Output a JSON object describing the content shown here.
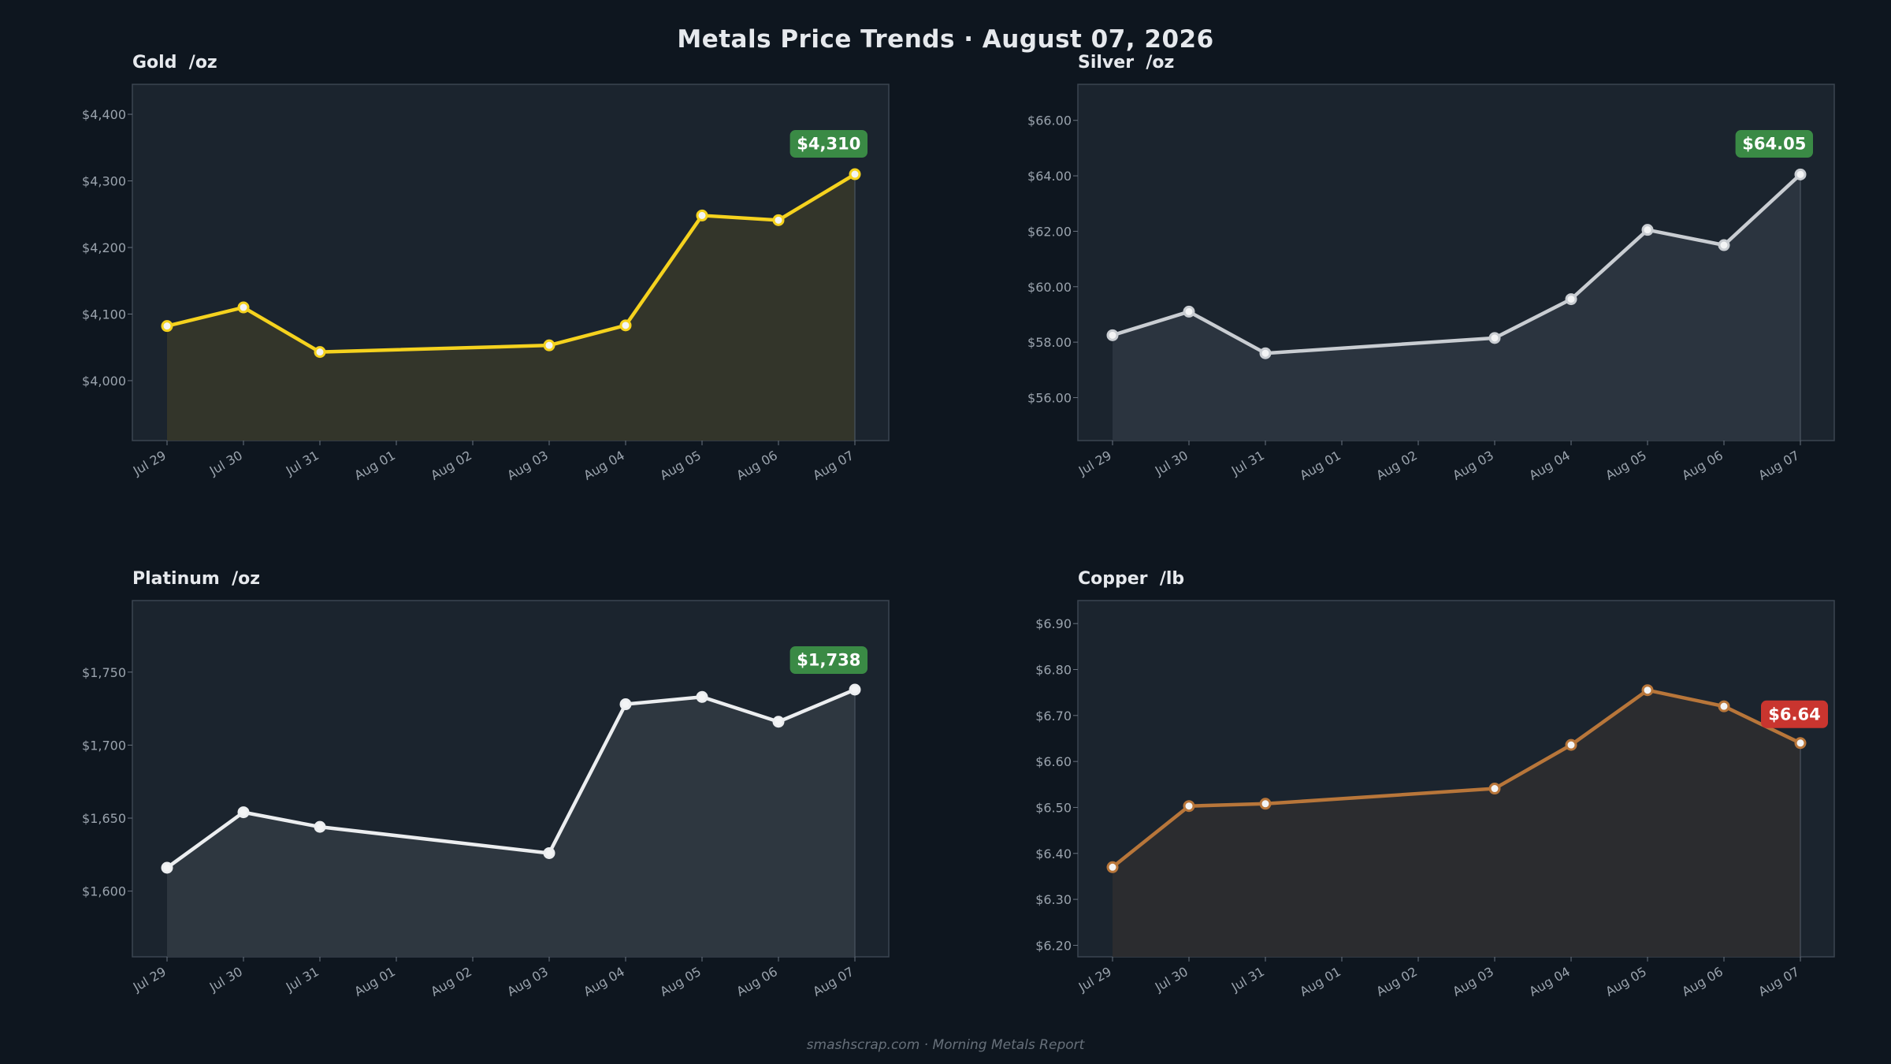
{
  "title": "Metals Price Trends  ·  August 07, 2026",
  "footer": "smashscrap.com  ·  Morning Metals Report",
  "colors": {
    "background": "#0e161f",
    "panel": "#1b242e",
    "badge_up": "#3a8a45",
    "badge_down": "#c9352f"
  },
  "chart_data": [
    {
      "type": "area",
      "title": "Gold  /oz",
      "x": [
        "Jul 29",
        "Jul 30",
        "Jul 31",
        "Aug 01",
        "Aug 02",
        "Aug 03",
        "Aug 04",
        "Aug 05",
        "Aug 06",
        "Aug 07"
      ],
      "series": [
        {
          "points": [
            {
              "x": "Jul 29",
              "y": 4082
            },
            {
              "x": "Jul 30",
              "y": 4110
            },
            {
              "x": "Jul 31",
              "y": 4043
            },
            {
              "x": "Aug 03",
              "y": 4053
            },
            {
              "x": "Aug 04",
              "y": 4083
            },
            {
              "x": "Aug 05",
              "y": 4248
            },
            {
              "x": "Aug 06",
              "y": 4241
            },
            {
              "x": "Aug 07",
              "y": 4310
            }
          ],
          "color": "#f5d21e",
          "fill": "#33352a"
        }
      ],
      "ylim": [
        3910,
        4445
      ],
      "yticks": [
        4000,
        4100,
        4200,
        4300,
        4400
      ],
      "ytick_labels": [
        "$4,000",
        "$4,100",
        "$4,200",
        "$4,300",
        "$4,400"
      ],
      "badge": "$4,310",
      "badge_direction": "up",
      "grid": false
    },
    {
      "type": "area",
      "title": "Silver  /oz",
      "x": [
        "Jul 29",
        "Jul 30",
        "Jul 31",
        "Aug 01",
        "Aug 02",
        "Aug 03",
        "Aug 04",
        "Aug 05",
        "Aug 06",
        "Aug 07"
      ],
      "series": [
        {
          "points": [
            {
              "x": "Jul 29",
              "y": 58.25
            },
            {
              "x": "Jul 30",
              "y": 59.1
            },
            {
              "x": "Jul 31",
              "y": 57.6
            },
            {
              "x": "Aug 03",
              "y": 58.15
            },
            {
              "x": "Aug 04",
              "y": 59.55
            },
            {
              "x": "Aug 05",
              "y": 62.05
            },
            {
              "x": "Aug 06",
              "y": 61.5
            },
            {
              "x": "Aug 07",
              "y": 64.05
            }
          ],
          "color": "#c9cdd2",
          "fill": "#2b343f"
        }
      ],
      "ylim": [
        54.45,
        67.3
      ],
      "yticks": [
        56,
        58,
        60,
        62,
        64,
        66
      ],
      "ytick_labels": [
        "$56.00",
        "$58.00",
        "$60.00",
        "$62.00",
        "$64.00",
        "$66.00"
      ],
      "badge": "$64.05",
      "badge_direction": "up",
      "grid": false
    },
    {
      "type": "area",
      "title": "Platinum  /oz",
      "x": [
        "Jul 29",
        "Jul 30",
        "Jul 31",
        "Aug 01",
        "Aug 02",
        "Aug 03",
        "Aug 04",
        "Aug 05",
        "Aug 06",
        "Aug 07"
      ],
      "series": [
        {
          "points": [
            {
              "x": "Jul 29",
              "y": 1616
            },
            {
              "x": "Jul 30",
              "y": 1654
            },
            {
              "x": "Jul 31",
              "y": 1644
            },
            {
              "x": "Aug 03",
              "y": 1626
            },
            {
              "x": "Aug 04",
              "y": 1728
            },
            {
              "x": "Aug 05",
              "y": 1733
            },
            {
              "x": "Aug 06",
              "y": 1716
            },
            {
              "x": "Aug 07",
              "y": 1738
            }
          ],
          "color": "#eceef0",
          "fill": "#2e3740"
        }
      ],
      "ylim": [
        1555,
        1799
      ],
      "yticks": [
        1600,
        1650,
        1700,
        1750
      ],
      "ytick_labels": [
        "$1,600",
        "$1,650",
        "$1,700",
        "$1,750"
      ],
      "badge": "$1,738",
      "badge_direction": "up",
      "grid": false
    },
    {
      "type": "area",
      "title": "Copper  /lb",
      "x": [
        "Jul 29",
        "Jul 30",
        "Jul 31",
        "Aug 01",
        "Aug 02",
        "Aug 03",
        "Aug 04",
        "Aug 05",
        "Aug 06",
        "Aug 07"
      ],
      "series": [
        {
          "points": [
            {
              "x": "Jul 29",
              "y": 6.37
            },
            {
              "x": "Jul 30",
              "y": 6.503
            },
            {
              "x": "Jul 31",
              "y": 6.508
            },
            {
              "x": "Aug 03",
              "y": 6.541
            },
            {
              "x": "Aug 04",
              "y": 6.636
            },
            {
              "x": "Aug 05",
              "y": 6.755
            },
            {
              "x": "Aug 06",
              "y": 6.72
            },
            {
              "x": "Aug 07",
              "y": 6.64
            }
          ],
          "color": "#b8763a",
          "fill": "#2b2c2f"
        }
      ],
      "ylim": [
        6.175,
        6.95
      ],
      "yticks": [
        6.2,
        6.3,
        6.4,
        6.5,
        6.6,
        6.7,
        6.8,
        6.9
      ],
      "ytick_labels": [
        "$6.20",
        "$6.30",
        "$6.40",
        "$6.50",
        "$6.60",
        "$6.70",
        "$6.80",
        "$6.90"
      ],
      "badge": "$6.64",
      "badge_direction": "down",
      "grid": false
    }
  ]
}
